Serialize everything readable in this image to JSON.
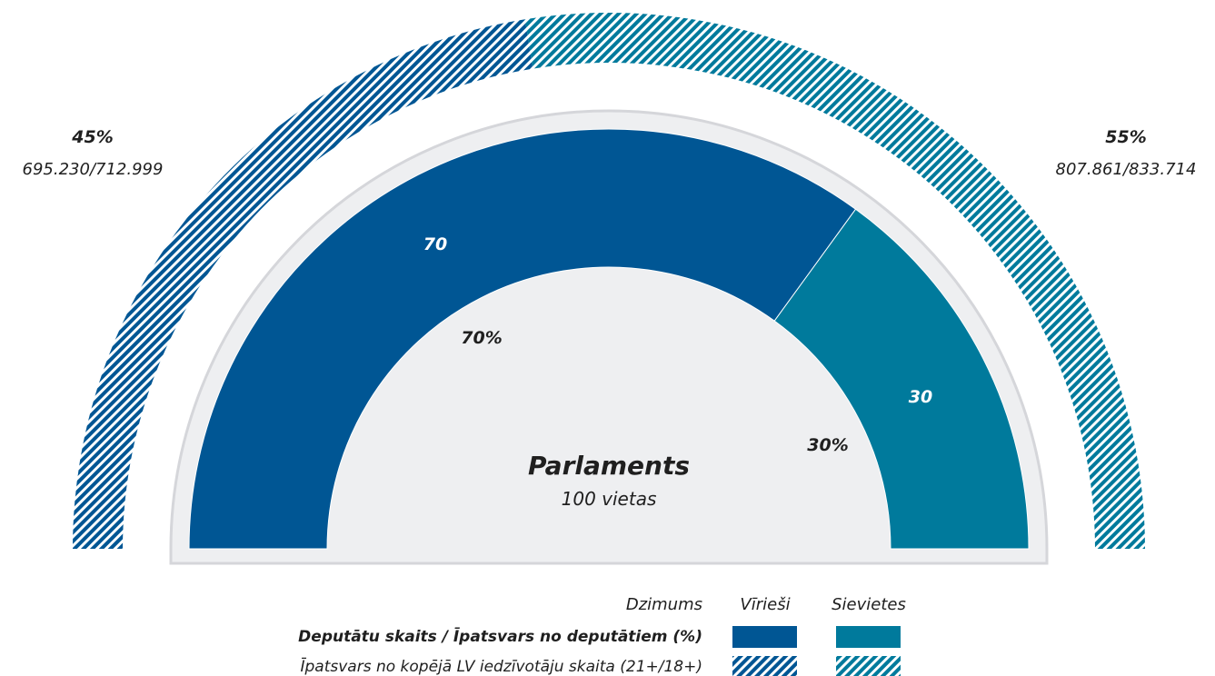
{
  "colors": {
    "men": "#005694",
    "women": "#007a9c",
    "center_bg": "#eeeff1",
    "center_stroke": "#d5d6da",
    "text": "#1f1f1f"
  },
  "chart_data": {
    "type": "pie",
    "subtype": "semicircle",
    "title": "Parlaments",
    "subtitle": "100 vietas",
    "categories": [
      "Vīrieši",
      "Sievietes"
    ],
    "series": [
      {
        "name": "Deputātu skaits / Īpatsvars no deputātiem (%)",
        "values": [
          70,
          30
        ],
        "labels": [
          "70",
          "30"
        ],
        "pct_labels": [
          "70%",
          "30%"
        ]
      },
      {
        "name": "Īpatsvars no kopējā LV iedzīvotāju skaita (21+/18+)",
        "values": [
          45,
          55
        ],
        "pct_labels": [
          "45%",
          "55%"
        ],
        "counts": [
          "695.230/712.999",
          "807.861/833.714"
        ]
      }
    ],
    "legend": {
      "position": "bottom-right",
      "header": "Dzimums",
      "columns": [
        "Vīrieši",
        "Sievietes"
      ],
      "rows": [
        "Deputātu skaits / Īpatsvars no deputātiem (%)",
        "Īpatsvars no kopējā LV iedzīvotāju skaita (21+/18+)"
      ]
    }
  }
}
